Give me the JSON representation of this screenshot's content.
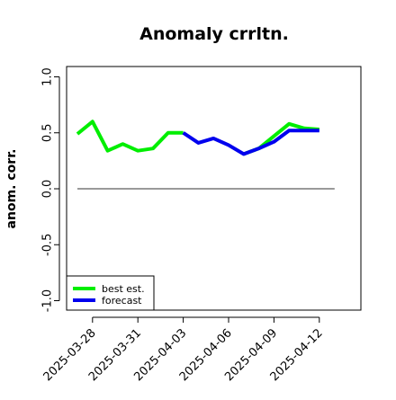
{
  "chart_data": {
    "type": "line",
    "title": "Anomaly crrltn.",
    "ylabel": "anom. corr.",
    "xlabel": "",
    "ylim": [
      -1.0,
      1.0
    ],
    "yticks": [
      "-1.0",
      "-0.5",
      "0.0",
      "0.5",
      "1.0"
    ],
    "yticks_values": [
      -1.0,
      -0.5,
      0.0,
      0.5,
      1.0
    ],
    "x": [
      "2025-03-27",
      "2025-03-28",
      "2025-03-29",
      "2025-03-30",
      "2025-03-31",
      "2025-04-01",
      "2025-04-02",
      "2025-04-03",
      "2025-04-04",
      "2025-04-05",
      "2025-04-06",
      "2025-04-07",
      "2025-04-08",
      "2025-04-09",
      "2025-04-10",
      "2025-04-11",
      "2025-04-12"
    ],
    "xticks": [
      "2025-03-28",
      "2025-03-31",
      "2025-04-03",
      "2025-04-06",
      "2025-04-09",
      "2025-04-12"
    ],
    "highlight_tick": "2025-04-03",
    "highlight_color": "#228b22",
    "reference_line": 0.0,
    "grid": false,
    "legend_position": "bottom-left",
    "series": [
      {
        "name": "best est.",
        "color": "#00ee00",
        "values": [
          0.49,
          0.6,
          0.34,
          0.4,
          0.34,
          0.36,
          0.5,
          0.5,
          null,
          null,
          null,
          0.31,
          0.36,
          0.47,
          0.58,
          0.54,
          0.53
        ]
      },
      {
        "name": "forecast",
        "color": "#0000ee",
        "values": [
          null,
          null,
          null,
          null,
          null,
          null,
          null,
          0.5,
          0.41,
          0.45,
          0.39,
          0.31,
          0.36,
          0.42,
          0.52,
          0.52,
          0.52
        ]
      }
    ]
  }
}
